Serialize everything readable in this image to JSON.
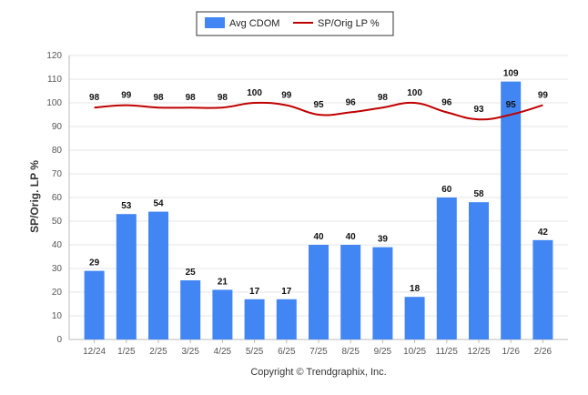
{
  "chart_data": {
    "type": "bar",
    "categories": [
      "12/24",
      "1/25",
      "2/25",
      "3/25",
      "4/25",
      "5/25",
      "6/25",
      "7/25",
      "8/25",
      "9/25",
      "10/25",
      "11/25",
      "12/25",
      "1/26",
      "2/26"
    ],
    "series": [
      {
        "name": "Avg CDOM",
        "type": "bar",
        "values": [
          29,
          53,
          54,
          25,
          21,
          17,
          17,
          40,
          40,
          39,
          18,
          60,
          58,
          109,
          42
        ],
        "color": "#4286f4"
      },
      {
        "name": "SP/Orig LP %",
        "type": "line",
        "values": [
          98,
          99,
          98,
          98,
          98,
          100,
          99,
          95,
          96,
          98,
          100,
          96,
          93,
          95,
          99
        ],
        "color": "#c00000"
      }
    ],
    "ylabel": "SP/Orig. LP %",
    "ylim": [
      0,
      120
    ],
    "yticks": [
      "0",
      "10",
      "20",
      "30",
      "40",
      "50",
      "60",
      "70",
      "80",
      "90",
      "100",
      "110",
      "120"
    ],
    "grid": true,
    "legend": "top-center",
    "footer": "Copyright © Trendgraphix, Inc."
  }
}
